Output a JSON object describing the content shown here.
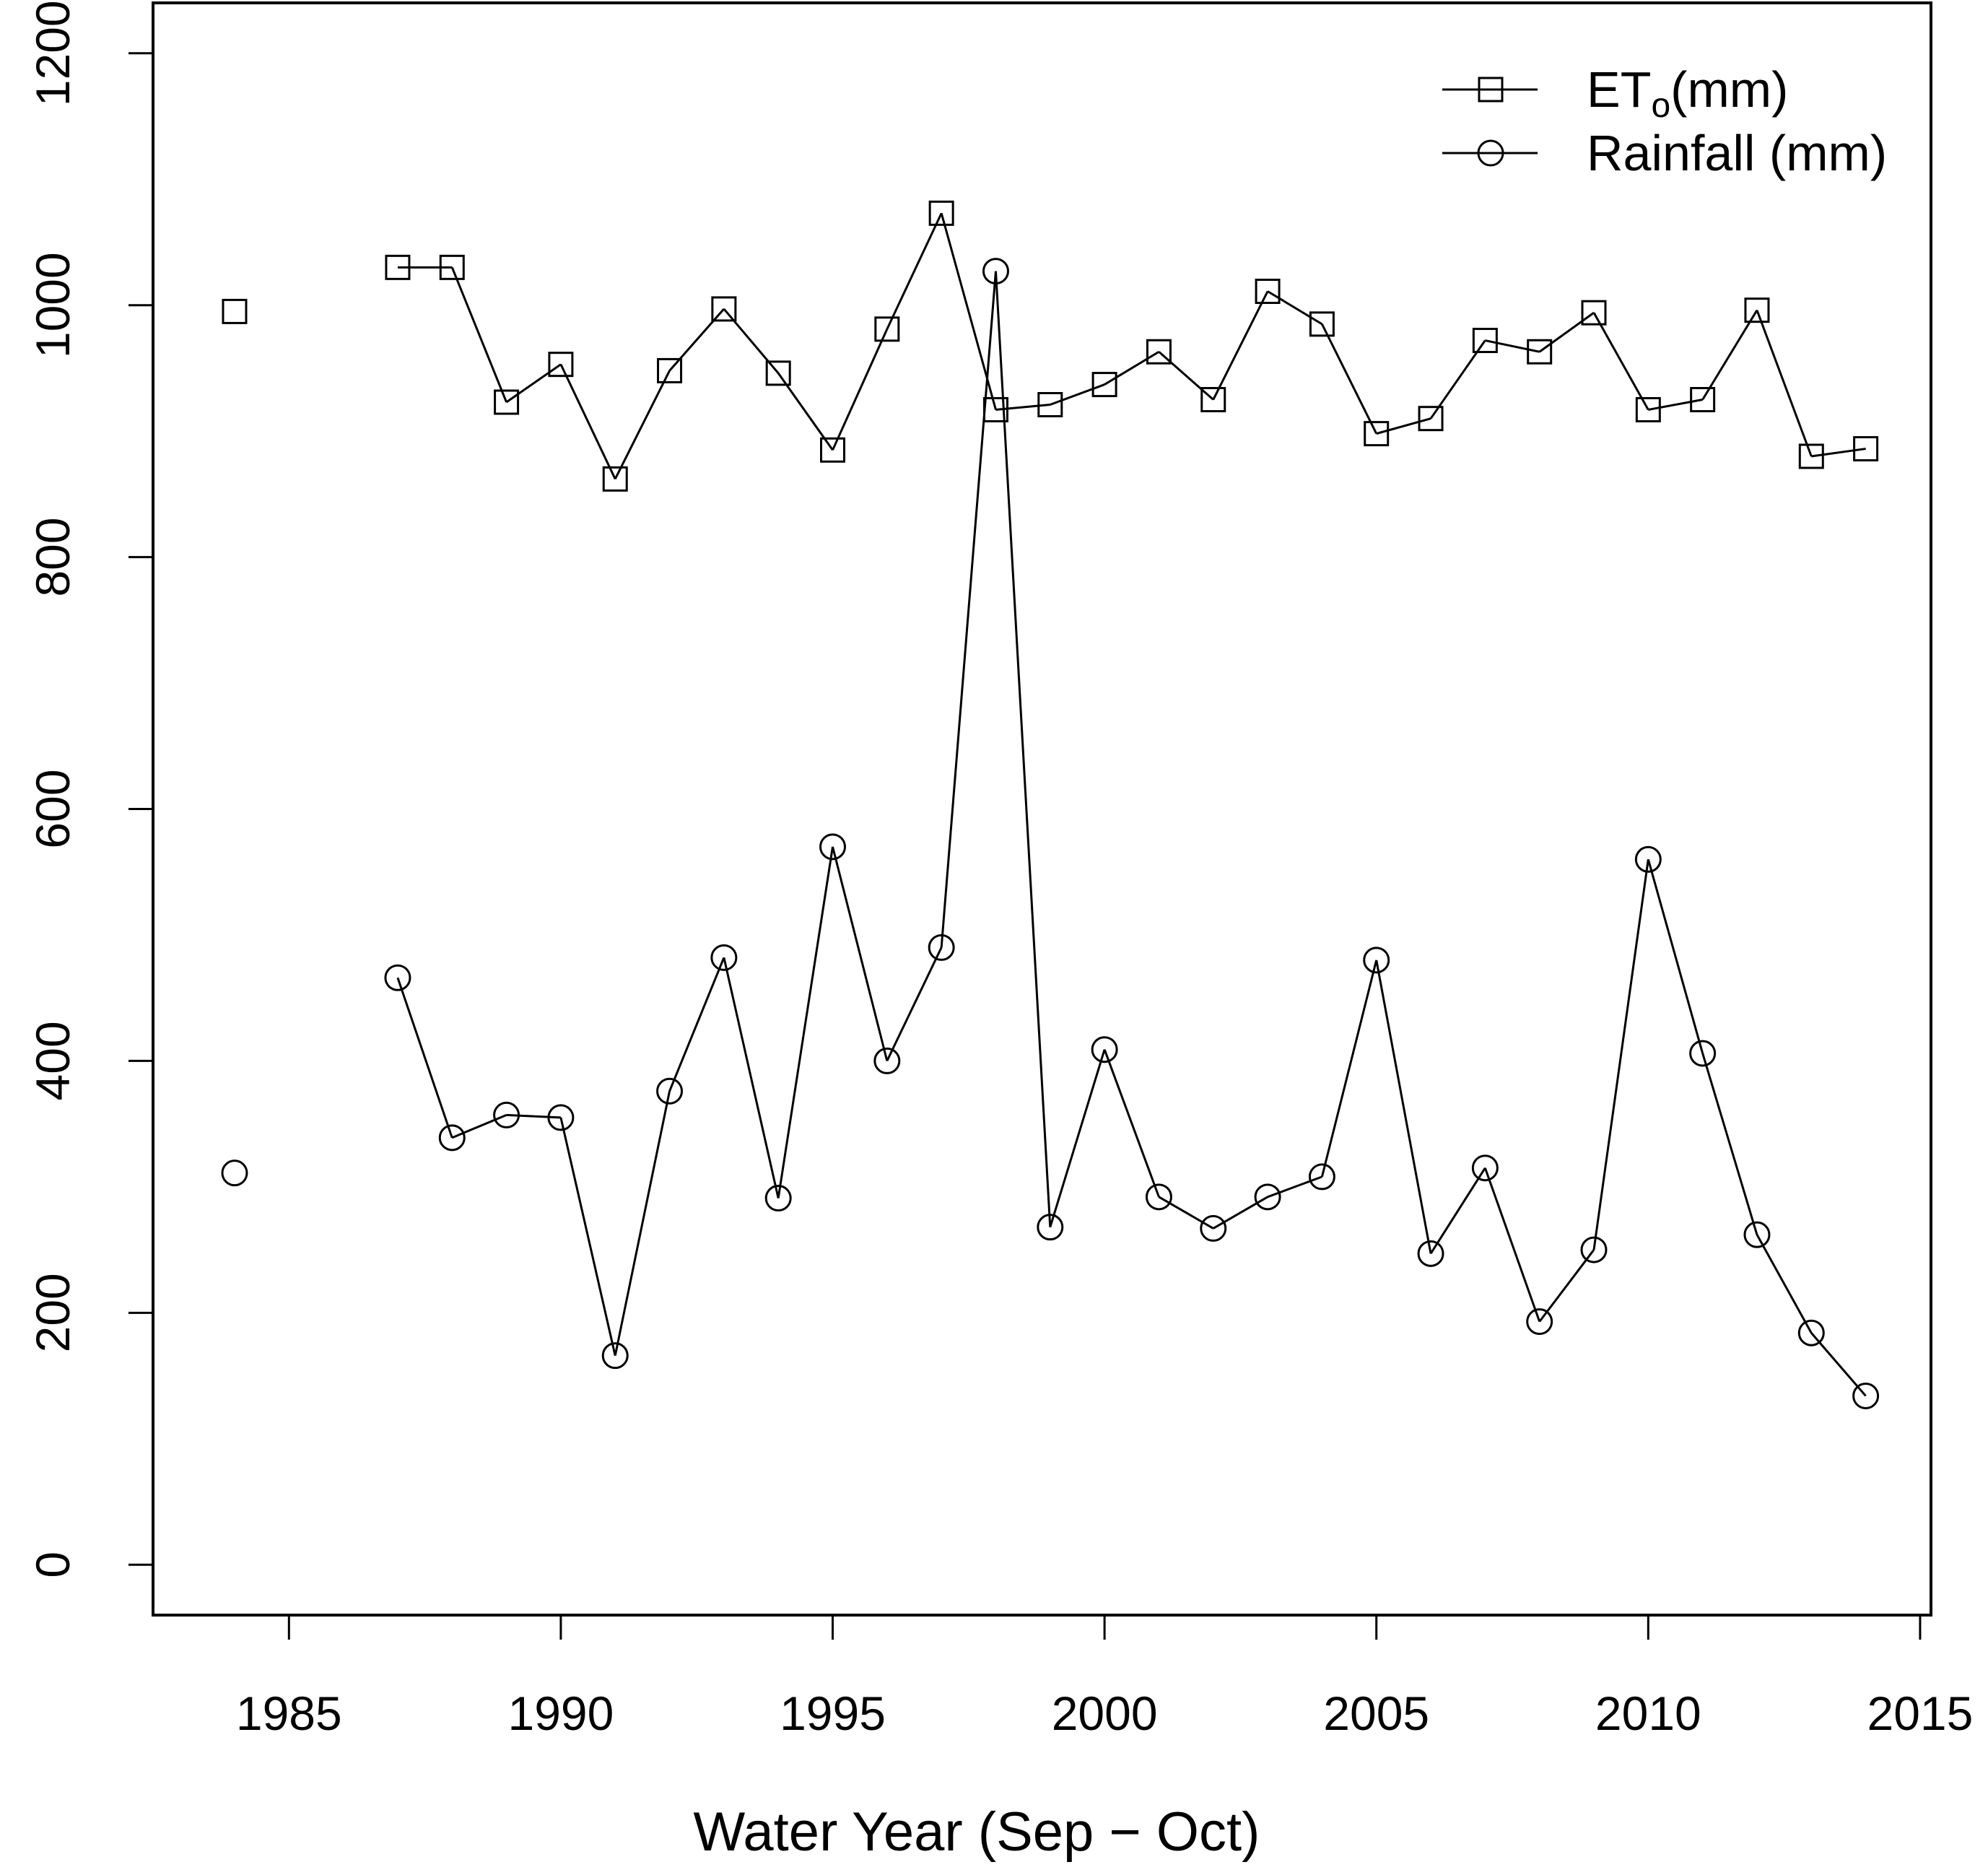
{
  "chart_data": {
    "type": "line",
    "title": "",
    "xlabel": "Water Year (Sep − Oct)",
    "ylabel": "",
    "xlim": [
      1982.5,
      2015.2
    ],
    "ylim": [
      -40,
      1240
    ],
    "xticks": [
      1985,
      1990,
      1995,
      2000,
      2005,
      2010,
      2015
    ],
    "yticks": [
      0,
      200,
      400,
      600,
      800,
      1000,
      1200
    ],
    "xtick_labels": [
      "1985",
      "1990",
      "1995",
      "2000",
      "2005",
      "2010",
      "2015"
    ],
    "ytick_labels": [
      "0",
      "200",
      "400",
      "600",
      "800",
      "1000",
      "1200"
    ],
    "grid": false,
    "legend_position": "top-right",
    "series": [
      {
        "name_main": "ET",
        "name_sub": "o",
        "name_tail": "(mm)",
        "marker": "square",
        "x": [
          1984,
          1987,
          1988,
          1989,
          1990,
          1991,
          1992,
          1993,
          1994,
          1995,
          1996,
          1997,
          1998,
          1999,
          2000,
          2001,
          2002,
          2003,
          2004,
          2005,
          2006,
          2007,
          2008,
          2009,
          2010,
          2011,
          2012,
          2013,
          2014
        ],
        "values": [
          995,
          1030,
          1030,
          923,
          953,
          862,
          948,
          997,
          946,
          885,
          981,
          1073,
          917,
          921,
          937,
          963,
          925,
          1011,
          985,
          898,
          910,
          972,
          963,
          994,
          917,
          925,
          996,
          880,
          886
        ]
      },
      {
        "name": "Rainfall (mm)",
        "marker": "circle",
        "x": [
          1984,
          1987,
          1988,
          1989,
          1990,
          1991,
          1992,
          1993,
          1994,
          1995,
          1996,
          1997,
          1998,
          1999,
          2000,
          2001,
          2002,
          2003,
          2004,
          2005,
          2006,
          2007,
          2008,
          2009,
          2010,
          2011,
          2012,
          2013,
          2014
        ],
        "values": [
          311,
          466,
          339,
          357,
          355,
          166,
          376,
          482,
          291,
          570,
          400,
          490,
          1027,
          268,
          409,
          292,
          267,
          292,
          308,
          480,
          247,
          315,
          193,
          250,
          560,
          406,
          262,
          184,
          134
        ]
      }
    ]
  }
}
